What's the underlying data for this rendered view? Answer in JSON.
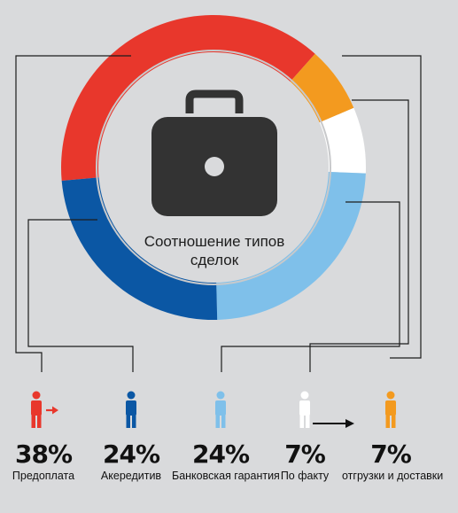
{
  "chart_data": {
    "type": "donut",
    "center_label": "Соотношение типов сделок",
    "slices": [
      {
        "label": "Предоплата",
        "value": 38,
        "display": "38%",
        "color": "#e8372c"
      },
      {
        "label": "отгрузки и доставки",
        "value": 7,
        "display": "7%",
        "color": "#f39a1f"
      },
      {
        "label": "По факту",
        "value": 7,
        "display": "7%",
        "color": "#ffffff"
      },
      {
        "label": "Банковская гарантия",
        "value": 24,
        "display": "24%",
        "color": "#7fc0ea"
      },
      {
        "label": "Акередитив",
        "value": 24,
        "display": "24%",
        "color": "#0b57a4"
      }
    ],
    "icon": "briefcase-icon",
    "legend_order": [
      "Предоплата",
      "Акередитив",
      "Банковская гарантия",
      "По факту",
      "отгрузки и доставки"
    ]
  },
  "legend": [
    {
      "pct": "38%",
      "caption": "Предоплата",
      "person_color": "#e8372c",
      "extra_icon": "arrow-right-icon"
    },
    {
      "pct": "24%",
      "caption": "Акередитив",
      "person_color": "#0b57a4"
    },
    {
      "pct": "24%",
      "caption": "Банковская гарантия",
      "person_color": "#7fc0ea"
    },
    {
      "pct": "7%",
      "caption": "По факту",
      "person_color": "#ffffff"
    },
    {
      "pct": "7%",
      "caption": "отгрузки и доставки",
      "person_color": "#f39a1f"
    }
  ],
  "connector_icon": "long-arrow-right-icon"
}
